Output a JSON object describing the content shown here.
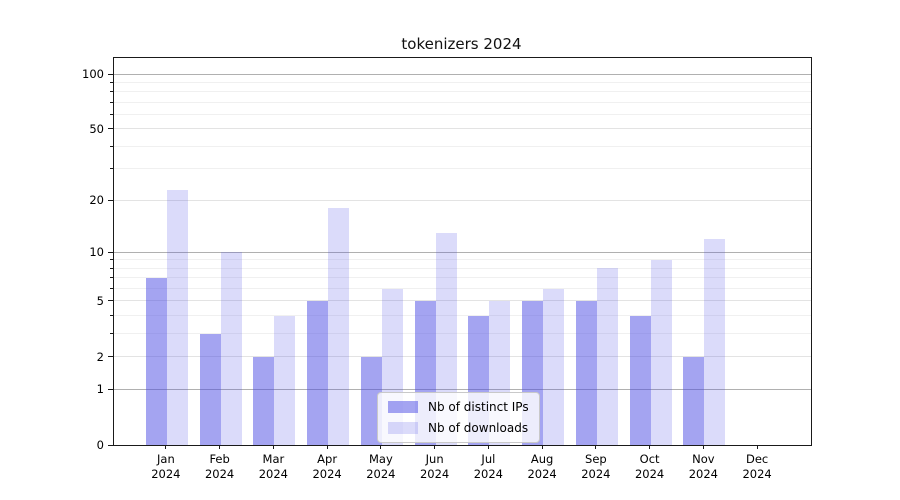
{
  "chart_data": {
    "type": "bar",
    "title": "tokenizers 2024",
    "categories": [
      "Jan 2024",
      "Feb 2024",
      "Mar 2024",
      "Apr 2024",
      "May 2024",
      "Jun 2024",
      "Jul 2024",
      "Aug 2024",
      "Sep 2024",
      "Oct 2024",
      "Nov 2024",
      "Dec 2024"
    ],
    "series": [
      {
        "name": "Nb of distinct IPs",
        "color": "rgba(77,77,228,0.51)",
        "values": [
          7,
          3,
          2,
          5,
          2,
          5,
          4,
          5,
          5,
          4,
          2,
          0
        ]
      },
      {
        "name": "Nb of downloads",
        "color": "rgba(77,77,228,0.20)",
        "values": [
          23,
          10,
          4,
          18,
          6,
          13,
          5,
          6,
          8,
          9,
          12,
          0
        ]
      }
    ],
    "xlabel": "",
    "ylabel": "",
    "yscale": "log1p",
    "ylim": [
      0,
      122
    ],
    "grid": true,
    "legend_position": "lower center",
    "y_axis": {
      "tick_values": [
        0,
        1,
        2,
        5,
        10,
        20,
        50,
        100
      ],
      "tick_labels": [
        "0",
        "1",
        "2",
        "5",
        "10",
        "20",
        "50",
        "100"
      ],
      "major_gridlines": [
        1,
        10,
        100
      ],
      "mid_gridlines": [
        2,
        5,
        20,
        50
      ],
      "minor_gridlines": [
        3,
        4,
        6,
        7,
        8,
        9,
        30,
        40,
        60,
        70,
        80,
        90
      ]
    },
    "legend": {
      "entries": [
        {
          "label": "Nb of distinct IPs",
          "color": "rgba(77,77,228,0.51)"
        },
        {
          "label": "Nb of downloads",
          "color": "rgba(77,77,228,0.20)"
        }
      ]
    },
    "colors": {
      "major_grid": "#b0b0b0",
      "mid_grid": "#e3e3e3",
      "minor_grid": "#f0f0f0",
      "spine": "#1a1a1a",
      "background": "#ffffff"
    }
  }
}
